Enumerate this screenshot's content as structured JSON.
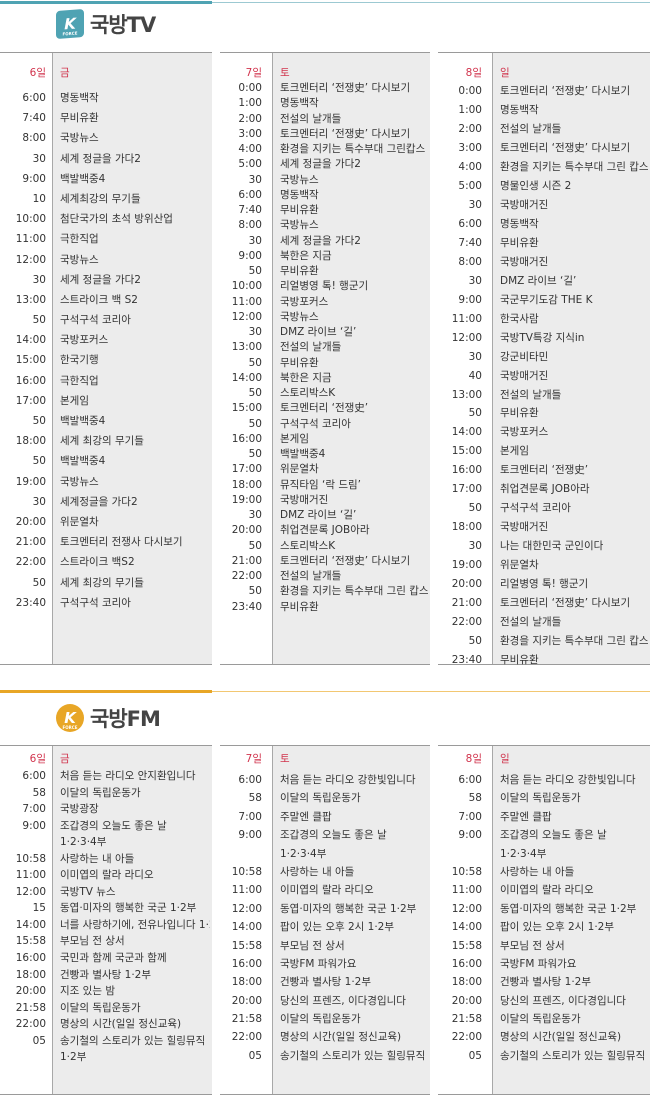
{
  "colors": {
    "tv_accent": "#4fa3b3",
    "fm_accent": "#e8a626",
    "day_header": "#d1334c",
    "program_bg": "#ececec"
  },
  "tv": {
    "logo_badge": "K",
    "logo_badge_sub": "FORCE",
    "title": "국방TV",
    "days": [
      {
        "date": "6일",
        "weekday": "금",
        "rows": [
          {
            "time": "6:00",
            "title": "명동백작"
          },
          {
            "time": "7:40",
            "title": "무비유환"
          },
          {
            "time": "8:00",
            "title": "국방뉴스"
          },
          {
            "time": "30",
            "title": "세계 정글을 가다2"
          },
          {
            "time": "9:00",
            "title": "백발백중4"
          },
          {
            "time": "10",
            "title": "세계최강의 무기들"
          },
          {
            "time": "10:00",
            "title": "첨단국가의 초석 방위산업"
          },
          {
            "time": "11:00",
            "title": "극한직업"
          },
          {
            "time": "12:00",
            "title": "국방뉴스"
          },
          {
            "time": "30",
            "title": "세계 정글을 가다2"
          },
          {
            "time": "13:00",
            "title": "스트라이크 백 S2"
          },
          {
            "time": "50",
            "title": "구석구석 코리아"
          },
          {
            "time": "14:00",
            "title": "국방포커스"
          },
          {
            "time": "15:00",
            "title": "한국기행"
          },
          {
            "time": "16:00",
            "title": "극한직업"
          },
          {
            "time": "17:00",
            "title": "본게임"
          },
          {
            "time": "50",
            "title": "백발백중4"
          },
          {
            "time": "18:00",
            "title": "세계 최강의 무기들"
          },
          {
            "time": "50",
            "title": "백발백중4"
          },
          {
            "time": "19:00",
            "title": "국방뉴스"
          },
          {
            "time": "30",
            "title": "세계정글을 가다2"
          },
          {
            "time": "20:00",
            "title": "위문열차"
          },
          {
            "time": "21:00",
            "title": "토크멘터리 전쟁사 다시보기"
          },
          {
            "time": "22:00",
            "title": "스트라이크 백S2"
          },
          {
            "time": "50",
            "title": "세계 최강의 무기들"
          },
          {
            "time": "23:40",
            "title": "구석구석 코리아"
          }
        ]
      },
      {
        "date": "7일",
        "weekday": "토",
        "rows": [
          {
            "time": "0:00",
            "title": "토크멘터리 ‘전쟁史’ 다시보기"
          },
          {
            "time": "1:00",
            "title": "명동백작"
          },
          {
            "time": "2:00",
            "title": "전설의 날개들"
          },
          {
            "time": "3:00",
            "title": "토크멘터리 ‘전쟁史’ 다시보기"
          },
          {
            "time": "4:00",
            "title": "환경을 지키는 특수부대 그린캅스"
          },
          {
            "time": "5:00",
            "title": "세계 정글을 가다2"
          },
          {
            "time": "30",
            "title": "국방뉴스"
          },
          {
            "time": "6:00",
            "title": "명동백작"
          },
          {
            "time": "7:40",
            "title": "무비유환"
          },
          {
            "time": "8:00",
            "title": "국방뉴스"
          },
          {
            "time": "30",
            "title": "세계 정글을 가다2"
          },
          {
            "time": "9:00",
            "title": "북한은 지금"
          },
          {
            "time": "50",
            "title": "무비유환"
          },
          {
            "time": "10:00",
            "title": "리얼병영 톡! 행군기"
          },
          {
            "time": "11:00",
            "title": "국방포커스"
          },
          {
            "time": "12:00",
            "title": "국방뉴스"
          },
          {
            "time": "30",
            "title": "DMZ 라이브 ‘길’"
          },
          {
            "time": "13:00",
            "title": "전설의 날개들"
          },
          {
            "time": "50",
            "title": "무비유환"
          },
          {
            "time": "14:00",
            "title": "북한은 지금"
          },
          {
            "time": "50",
            "title": "스토리박스K"
          },
          {
            "time": "15:00",
            "title": "토크멘터리 ‘전쟁史’"
          },
          {
            "time": "50",
            "title": "구석구석 코리아"
          },
          {
            "time": "16:00",
            "title": "본게임"
          },
          {
            "time": "50",
            "title": "백발백중4"
          },
          {
            "time": "17:00",
            "title": "위문열차"
          },
          {
            "time": "18:00",
            "title": "뮤직타임 ‘락 드림’"
          },
          {
            "time": "19:00",
            "title": "국방매거진"
          },
          {
            "time": "30",
            "title": "DMZ 라이브 ‘길’"
          },
          {
            "time": "20:00",
            "title": "취업견문록 JOB아라"
          },
          {
            "time": "50",
            "title": "스토리박스K"
          },
          {
            "time": "21:00",
            "title": "토크멘터리 ‘전쟁史’ 다시보기"
          },
          {
            "time": "22:00",
            "title": "전설의 날개들"
          },
          {
            "time": "50",
            "title": "환경을 지키는 특수부대 그린 캅스"
          },
          {
            "time": "23:40",
            "title": "무비유환"
          }
        ]
      },
      {
        "date": "8일",
        "weekday": "일",
        "rows": [
          {
            "time": "0:00",
            "title": "토크멘터리 ‘전쟁史’ 다시보기"
          },
          {
            "time": "1:00",
            "title": "명동백작"
          },
          {
            "time": "2:00",
            "title": "전설의 날개들"
          },
          {
            "time": "3:00",
            "title": "토크멘터리 ‘전쟁史’ 다시보기"
          },
          {
            "time": "4:00",
            "title": "환경을 지키는 특수부대 그린 캅스"
          },
          {
            "time": "5:00",
            "title": "명물인생 시즌 2"
          },
          {
            "time": "30",
            "title": "국방매거진"
          },
          {
            "time": "6:00",
            "title": "명동백작"
          },
          {
            "time": "7:40",
            "title": "무비유환"
          },
          {
            "time": "8:00",
            "title": "국방매거진"
          },
          {
            "time": "30",
            "title": "DMZ 라이브 ‘길’"
          },
          {
            "time": "9:00",
            "title": "국군무기도감 THE K"
          },
          {
            "time": "11:00",
            "title": "한국사람"
          },
          {
            "time": "12:00",
            "title": "국방TV특강 지식in"
          },
          {
            "time": "30",
            "title": "강군비타민"
          },
          {
            "time": "40",
            "title": "국방매거진"
          },
          {
            "time": "13:00",
            "title": "전설의 날개들"
          },
          {
            "time": "50",
            "title": "무비유환"
          },
          {
            "time": "14:00",
            "title": "국방포커스"
          },
          {
            "time": "15:00",
            "title": "본게임"
          },
          {
            "time": "16:00",
            "title": "토크멘터리 ‘전쟁史’"
          },
          {
            "time": "17:00",
            "title": "취업견문록 JOB아라"
          },
          {
            "time": "50",
            "title": "구석구석 코리아"
          },
          {
            "time": "18:00",
            "title": "국방매거진"
          },
          {
            "time": "30",
            "title": "나는 대한민국 군인이다"
          },
          {
            "time": "19:00",
            "title": "위문열차"
          },
          {
            "time": "20:00",
            "title": "리얼병영 톡! 행군기"
          },
          {
            "time": "21:00",
            "title": "토크멘터리 ‘전쟁史’ 다시보기"
          },
          {
            "time": "22:00",
            "title": "전설의 날개들"
          },
          {
            "time": "50",
            "title": "환경을 지키는 특수부대 그린 캅스"
          },
          {
            "time": "23:40",
            "title": "무비유환"
          }
        ]
      }
    ]
  },
  "fm": {
    "logo_badge": "K",
    "logo_badge_sub": "FORCE",
    "title": "국방FM",
    "days": [
      {
        "date": "6일",
        "weekday": "금",
        "rows": [
          {
            "time": "6:00",
            "title": "처음 듣는 라디오 안지환입니다"
          },
          {
            "time": "58",
            "title": "이달의 독립운동가"
          },
          {
            "time": "7:00",
            "title": "국방광장"
          },
          {
            "time": "9:00",
            "title": "조갑경의 오늘도 좋은 날"
          },
          {
            "time": "",
            "title": "1·2·3·4부"
          },
          {
            "time": "10:58",
            "title": "사랑하는 내 아들"
          },
          {
            "time": "11:00",
            "title": "이미엽의 랄라 라디오"
          },
          {
            "time": "12:00",
            "title": "국방TV 뉴스"
          },
          {
            "time": "15",
            "title": "동엽·미자의 행복한 국군 1·2부"
          },
          {
            "time": "14:00",
            "title": "너를 사랑하기에, 전유나입니다 1·2부"
          },
          {
            "time": "15:58",
            "title": "부모님 전 상서"
          },
          {
            "time": "16:00",
            "title": "국민과 함께 국군과 함께"
          },
          {
            "time": "18:00",
            "title": "건빵과 별사탕 1·2부"
          },
          {
            "time": "20:00",
            "title": "지조 있는 밤"
          },
          {
            "time": "21:58",
            "title": "이달의 독립운동가"
          },
          {
            "time": "22:00",
            "title": "명상의 시간(일일 정신교육)"
          },
          {
            "time": "05",
            "title": "송기철의 스토리가 있는 힐링뮤직"
          },
          {
            "time": "",
            "title": "1·2부"
          }
        ]
      },
      {
        "date": "7일",
        "weekday": "토",
        "rows": [
          {
            "time": "6:00",
            "title": "처음 듣는 라디오 강한빛입니다"
          },
          {
            "time": "58",
            "title": "이달의 독립운동가"
          },
          {
            "time": "7:00",
            "title": "주말엔 클팝"
          },
          {
            "time": "9:00",
            "title": "조갑경의 오늘도 좋은 날"
          },
          {
            "time": "",
            "title": "1·2·3·4부"
          },
          {
            "time": "10:58",
            "title": "사랑하는 내 아들"
          },
          {
            "time": "11:00",
            "title": "이미엽의 랄라 라디오"
          },
          {
            "time": "12:00",
            "title": "동엽·미자의 행복한 국군 1·2부"
          },
          {
            "time": "14:00",
            "title": "팝이 있는 오후 2시 1·2부"
          },
          {
            "time": "15:58",
            "title": "부모님 전 상서"
          },
          {
            "time": "16:00",
            "title": "국방FM 파워가요"
          },
          {
            "time": "18:00",
            "title": "건빵과 별사탕 1·2부"
          },
          {
            "time": "20:00",
            "title": "당신의 프렌즈, 이다경입니다"
          },
          {
            "time": "21:58",
            "title": "이달의 독립운동가"
          },
          {
            "time": "22:00",
            "title": "명상의 시간(일일 정신교육)"
          },
          {
            "time": "05",
            "title": "송기철의 스토리가 있는 힐링뮤직"
          }
        ]
      },
      {
        "date": "8일",
        "weekday": "일",
        "rows": [
          {
            "time": "6:00",
            "title": "처음 듣는 라디오 강한빛입니다"
          },
          {
            "time": "58",
            "title": "이달의 독립운동가"
          },
          {
            "time": "7:00",
            "title": "주말엔 클팝"
          },
          {
            "time": "9:00",
            "title": "조갑경의 오늘도 좋은 날"
          },
          {
            "time": "",
            "title": "1·2·3·4부"
          },
          {
            "time": "10:58",
            "title": "사랑하는 내 아들"
          },
          {
            "time": "11:00",
            "title": "이미엽의 랄라 라디오"
          },
          {
            "time": "12:00",
            "title": "동엽·미자의 행복한 국군 1·2부"
          },
          {
            "time": "14:00",
            "title": "팝이 있는 오후 2시 1·2부"
          },
          {
            "time": "15:58",
            "title": "부모님 전 상서"
          },
          {
            "time": "16:00",
            "title": "국방FM 파워가요"
          },
          {
            "time": "18:00",
            "title": "건빵과 별사탕 1·2부"
          },
          {
            "time": "20:00",
            "title": "당신의 프렌즈, 이다경입니다"
          },
          {
            "time": "21:58",
            "title": "이달의 독립운동가"
          },
          {
            "time": "22:00",
            "title": "명상의 시간(일일 정신교육)"
          },
          {
            "time": "05",
            "title": "송기철의 스토리가 있는 힐링뮤직"
          }
        ]
      }
    ]
  }
}
